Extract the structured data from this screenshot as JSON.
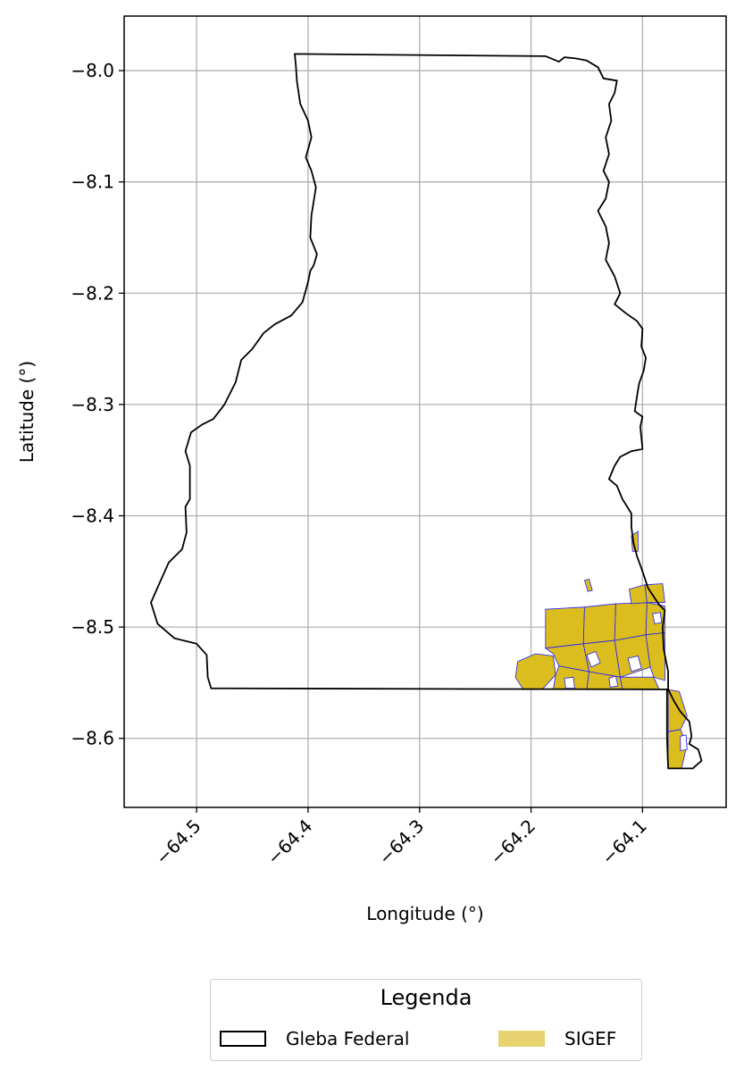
{
  "chart_data": {
    "type": "map",
    "xlabel": "Longitude (°)",
    "ylabel": "Latitude (°)",
    "xlim": [
      -64.565,
      -64.025
    ],
    "ylim": [
      -8.662,
      -7.951
    ],
    "xticks": [
      {
        "value": -64.5,
        "label": "−64.5"
      },
      {
        "value": -64.4,
        "label": "−64.4"
      },
      {
        "value": -64.3,
        "label": "−64.3"
      },
      {
        "value": -64.2,
        "label": "−64.2"
      },
      {
        "value": -64.1,
        "label": "−64.1"
      }
    ],
    "yticks": [
      {
        "value": -8.0,
        "label": "−8.0"
      },
      {
        "value": -8.1,
        "label": "−8.1"
      },
      {
        "value": -8.2,
        "label": "−8.2"
      },
      {
        "value": -8.3,
        "label": "−8.3"
      },
      {
        "value": -8.4,
        "label": "−8.4"
      },
      {
        "value": -8.5,
        "label": "−8.5"
      },
      {
        "value": -8.6,
        "label": "−8.6"
      }
    ],
    "grid": true,
    "x_tick_rotation_deg": 45,
    "legend": {
      "title": "Legenda",
      "placement": "bottom-center-outside",
      "entries": [
        {
          "label": "Gleba Federal",
          "style": "outline",
          "color": "#000000"
        },
        {
          "label": "SIGEF",
          "style": "fill",
          "color": "#e6d26f"
        }
      ]
    },
    "layers": {
      "gleba_federal": {
        "stroke": "#000000",
        "fill": "none",
        "polygon": [
          [
            -64.412,
            -7.985
          ],
          [
            -64.187,
            -7.987
          ],
          [
            -64.175,
            -7.992
          ],
          [
            -64.17,
            -7.988
          ],
          [
            -64.16,
            -7.989
          ],
          [
            -64.15,
            -7.991
          ],
          [
            -64.14,
            -7.997
          ],
          [
            -64.135,
            -8.007
          ],
          [
            -64.123,
            -8.009
          ],
          [
            -64.125,
            -8.02
          ],
          [
            -64.13,
            -8.03
          ],
          [
            -64.128,
            -8.045
          ],
          [
            -64.133,
            -8.06
          ],
          [
            -64.13,
            -8.075
          ],
          [
            -64.135,
            -8.09
          ],
          [
            -64.13,
            -8.1
          ],
          [
            -64.133,
            -8.115
          ],
          [
            -64.14,
            -8.126
          ],
          [
            -64.133,
            -8.14
          ],
          [
            -64.13,
            -8.155
          ],
          [
            -64.133,
            -8.17
          ],
          [
            -64.125,
            -8.185
          ],
          [
            -64.12,
            -8.2
          ],
          [
            -64.125,
            -8.21
          ],
          [
            -64.115,
            -8.218
          ],
          [
            -64.105,
            -8.225
          ],
          [
            -64.1,
            -8.232
          ],
          [
            -64.101,
            -8.248
          ],
          [
            -64.097,
            -8.258
          ],
          [
            -64.099,
            -8.27
          ],
          [
            -64.103,
            -8.281
          ],
          [
            -64.105,
            -8.293
          ],
          [
            -64.107,
            -8.306
          ],
          [
            -64.1,
            -8.311
          ],
          [
            -64.102,
            -8.32
          ],
          [
            -64.1,
            -8.34
          ],
          [
            -64.11,
            -8.342
          ],
          [
            -64.12,
            -8.347
          ],
          [
            -64.125,
            -8.355
          ],
          [
            -64.13,
            -8.367
          ],
          [
            -64.123,
            -8.373
          ],
          [
            -64.118,
            -8.385
          ],
          [
            -64.11,
            -8.398
          ],
          [
            -64.11,
            -8.41
          ],
          [
            -64.108,
            -8.425
          ],
          [
            -64.105,
            -8.436
          ],
          [
            -64.1,
            -8.45
          ],
          [
            -64.095,
            -8.465
          ],
          [
            -64.085,
            -8.48
          ],
          [
            -64.08,
            -8.485
          ],
          [
            -64.082,
            -8.5
          ],
          [
            -64.081,
            -8.52
          ],
          [
            -64.077,
            -8.54
          ],
          [
            -64.077,
            -8.556
          ],
          [
            -64.072,
            -8.566
          ],
          [
            -64.066,
            -8.576
          ],
          [
            -64.058,
            -8.585
          ],
          [
            -64.056,
            -8.598
          ],
          [
            -64.058,
            -8.605
          ],
          [
            -64.05,
            -8.61
          ],
          [
            -64.047,
            -8.62
          ],
          [
            -64.055,
            -8.627
          ],
          [
            -64.077,
            -8.627
          ],
          [
            -64.078,
            -8.6
          ],
          [
            -64.078,
            -8.556
          ],
          [
            -64.487,
            -8.555
          ],
          [
            -64.49,
            -8.545
          ],
          [
            -64.491,
            -8.525
          ],
          [
            -64.5,
            -8.515
          ],
          [
            -64.52,
            -8.51
          ],
          [
            -64.535,
            -8.497
          ],
          [
            -64.541,
            -8.478
          ],
          [
            -64.533,
            -8.46
          ],
          [
            -64.525,
            -8.442
          ],
          [
            -64.513,
            -8.43
          ],
          [
            -64.509,
            -8.415
          ],
          [
            -64.51,
            -8.392
          ],
          [
            -64.506,
            -8.385
          ],
          [
            -64.506,
            -8.355
          ],
          [
            -64.51,
            -8.342
          ],
          [
            -64.505,
            -8.325
          ],
          [
            -64.495,
            -8.318
          ],
          [
            -64.485,
            -8.313
          ],
          [
            -64.475,
            -8.3
          ],
          [
            -64.465,
            -8.28
          ],
          [
            -64.46,
            -8.26
          ],
          [
            -64.45,
            -8.25
          ],
          [
            -64.44,
            -8.236
          ],
          [
            -64.43,
            -8.228
          ],
          [
            -64.415,
            -8.22
          ],
          [
            -64.405,
            -8.208
          ],
          [
            -64.4,
            -8.19
          ],
          [
            -64.398,
            -8.18
          ],
          [
            -64.395,
            -8.175
          ],
          [
            -64.392,
            -8.165
          ],
          [
            -64.398,
            -8.15
          ],
          [
            -64.397,
            -8.13
          ],
          [
            -64.393,
            -8.105
          ],
          [
            -64.397,
            -8.09
          ],
          [
            -64.402,
            -8.078
          ],
          [
            -64.397,
            -8.06
          ],
          [
            -64.4,
            -8.045
          ],
          [
            -64.407,
            -8.03
          ],
          [
            -64.41,
            -8.01
          ],
          [
            -64.411,
            -7.995
          ],
          [
            -64.412,
            -7.985
          ]
        ]
      },
      "sigef": {
        "fill": "#dcbd1e",
        "stroke": "#1f1fff",
        "parcels": [
          [
            [
              -64.187,
              -8.484
            ],
            [
              -64.152,
              -8.482
            ],
            [
              -64.153,
              -8.515
            ],
            [
              -64.187,
              -8.519
            ]
          ],
          [
            [
              -64.152,
              -8.482
            ],
            [
              -64.124,
              -8.479
            ],
            [
              -64.125,
              -8.512
            ],
            [
              -64.153,
              -8.515
            ]
          ],
          [
            [
              -64.124,
              -8.479
            ],
            [
              -64.096,
              -8.478
            ],
            [
              -64.097,
              -8.507
            ],
            [
              -64.125,
              -8.512
            ]
          ],
          [
            [
              -64.096,
              -8.478
            ],
            [
              -64.08,
              -8.481
            ],
            [
              -64.08,
              -8.505
            ],
            [
              -64.097,
              -8.507
            ]
          ],
          [
            [
              -64.187,
              -8.519
            ],
            [
              -64.153,
              -8.515
            ],
            [
              -64.148,
              -8.54
            ],
            [
              -64.175,
              -8.535
            ],
            [
              -64.18,
              -8.524
            ]
          ],
          [
            [
              -64.153,
              -8.515
            ],
            [
              -64.125,
              -8.512
            ],
            [
              -64.12,
              -8.545
            ],
            [
              -64.148,
              -8.54
            ]
          ],
          [
            [
              -64.125,
              -8.512
            ],
            [
              -64.097,
              -8.507
            ],
            [
              -64.093,
              -8.536
            ],
            [
              -64.12,
              -8.545
            ]
          ],
          [
            [
              -64.097,
              -8.507
            ],
            [
              -64.08,
              -8.505
            ],
            [
              -64.08,
              -8.548
            ],
            [
              -64.09,
              -8.545
            ],
            [
              -64.093,
              -8.536
            ]
          ],
          [
            [
              -64.175,
              -8.535
            ],
            [
              -64.148,
              -8.54
            ],
            [
              -64.15,
              -8.556
            ],
            [
              -64.18,
              -8.556
            ],
            [
              -64.178,
              -8.543
            ]
          ],
          [
            [
              -64.148,
              -8.54
            ],
            [
              -64.12,
              -8.545
            ],
            [
              -64.118,
              -8.556
            ],
            [
              -64.15,
              -8.556
            ]
          ],
          [
            [
              -64.12,
              -8.545
            ],
            [
              -64.09,
              -8.545
            ],
            [
              -64.085,
              -8.556
            ],
            [
              -64.118,
              -8.556
            ]
          ],
          [
            [
              -64.212,
              -8.531
            ],
            [
              -64.196,
              -8.524
            ],
            [
              -64.18,
              -8.526
            ],
            [
              -64.178,
              -8.543
            ],
            [
              -64.19,
              -8.556
            ],
            [
              -64.207,
              -8.556
            ],
            [
              -64.214,
              -8.545
            ]
          ],
          [
            [
              -64.098,
              -8.462
            ],
            [
              -64.082,
              -8.461
            ],
            [
              -64.08,
              -8.478
            ],
            [
              -64.096,
              -8.478
            ]
          ],
          [
            [
              -64.112,
              -8.466
            ],
            [
              -64.098,
              -8.462
            ],
            [
              -64.096,
              -8.478
            ],
            [
              -64.11,
              -8.479
            ]
          ],
          [
            [
              -64.152,
              -8.458
            ],
            [
              -64.148,
              -8.457
            ],
            [
              -64.145,
              -8.467
            ],
            [
              -64.149,
              -8.468
            ]
          ],
          [
            [
              -64.11,
              -8.418
            ],
            [
              -64.104,
              -8.414
            ],
            [
              -64.104,
              -8.432
            ],
            [
              -64.109,
              -8.432
            ]
          ],
          [
            [
              -64.077,
              -8.556
            ],
            [
              -64.067,
              -8.558
            ],
            [
              -64.06,
              -8.58
            ],
            [
              -64.066,
              -8.592
            ],
            [
              -64.077,
              -8.594
            ]
          ],
          [
            [
              -64.077,
              -8.594
            ],
            [
              -64.066,
              -8.592
            ],
            [
              -64.06,
              -8.605
            ],
            [
              -64.065,
              -8.627
            ],
            [
              -64.077,
              -8.627
            ]
          ]
        ],
        "holes": [
          [
            [
              -64.15,
              -8.525
            ],
            [
              -64.142,
              -8.522
            ],
            [
              -64.138,
              -8.532
            ],
            [
              -64.146,
              -8.536
            ]
          ],
          [
            [
              -64.113,
              -8.528
            ],
            [
              -64.104,
              -8.526
            ],
            [
              -64.101,
              -8.537
            ],
            [
              -64.11,
              -8.54
            ]
          ],
          [
            [
              -64.13,
              -8.546
            ],
            [
              -64.124,
              -8.544
            ],
            [
              -64.122,
              -8.553
            ],
            [
              -64.129,
              -8.554
            ]
          ],
          [
            [
              -64.17,
              -8.546
            ],
            [
              -64.162,
              -8.545
            ],
            [
              -64.161,
              -8.555
            ],
            [
              -64.169,
              -8.555
            ]
          ],
          [
            [
              -64.066,
              -8.598
            ],
            [
              -64.061,
              -8.597
            ],
            [
              -64.06,
              -8.61
            ],
            [
              -64.066,
              -8.611
            ]
          ],
          [
            [
              -64.091,
              -8.488
            ],
            [
              -64.084,
              -8.487
            ],
            [
              -64.083,
              -8.496
            ],
            [
              -64.089,
              -8.497
            ]
          ]
        ]
      }
    }
  }
}
